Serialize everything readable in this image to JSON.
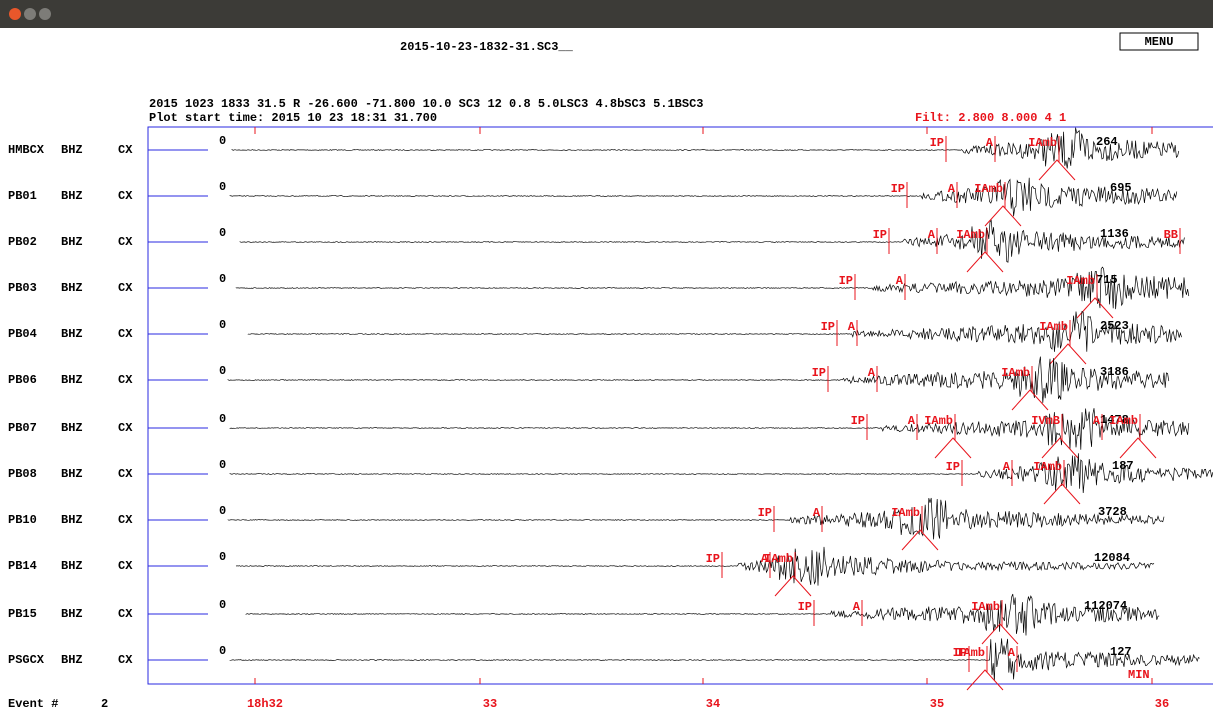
{
  "file_name": "2015-10-23-1832-31.SC3__",
  "menu": "MENU",
  "header_line": "2015 1023 1833 31.5 R -26.600 -71.800 10.0  SC3 12 0.8 5.0LSC3 4.8bSC3 5.1BSC3",
  "plot_start": "Plot start time: 2015  10 23   18:31  31.700",
  "filter": "Filt:  2.800  8.000  4 1",
  "stations": [
    {
      "name": "HMBCX",
      "component": "BHZ",
      "network": "CX",
      "zero_label": "0",
      "amplitude": "264",
      "picks": [
        "IP",
        "A",
        "IAmb"
      ]
    },
    {
      "name": "PB01",
      "component": "BHZ",
      "network": "CX",
      "zero_label": "0",
      "amplitude": "695",
      "picks": [
        "IP",
        "A",
        "IAmb"
      ]
    },
    {
      "name": "PB02",
      "component": "BHZ",
      "network": "CX",
      "zero_label": "0",
      "amplitude": "1136",
      "picks": [
        "IP",
        "A",
        "IAmb",
        "BB"
      ]
    },
    {
      "name": "PB03",
      "component": "BHZ",
      "network": "CX",
      "zero_label": "0",
      "amplitude": "715",
      "picks": [
        "IP",
        "A",
        "IAmb"
      ]
    },
    {
      "name": "PB04",
      "component": "BHZ",
      "network": "CX",
      "zero_label": "0",
      "amplitude": "2523",
      "picks": [
        "IP",
        "A",
        "IAmb"
      ]
    },
    {
      "name": "PB06",
      "component": "BHZ",
      "network": "CX",
      "zero_label": "0",
      "amplitude": "3186",
      "picks": [
        "IP",
        "A",
        "IAmb"
      ]
    },
    {
      "name": "PB07",
      "component": "BHZ",
      "network": "CX",
      "zero_label": "0",
      "amplitude": "1478",
      "picks": [
        "IP",
        "A",
        "IAmb",
        "IVmB",
        "A",
        "IAmb"
      ]
    },
    {
      "name": "PB08",
      "component": "BHZ",
      "network": "CX",
      "zero_label": "0",
      "amplitude": "187",
      "picks": [
        "IP",
        "A",
        "IAmb"
      ]
    },
    {
      "name": "PB10",
      "component": "BHZ",
      "network": "CX",
      "zero_label": "0",
      "amplitude": "3728",
      "picks": [
        "IP",
        "A",
        "IAmb"
      ]
    },
    {
      "name": "PB14",
      "component": "BHZ",
      "network": "CX",
      "zero_label": "0",
      "amplitude": "12084",
      "picks": [
        "IP",
        "A",
        "IAmb"
      ]
    },
    {
      "name": "PB15",
      "component": "BHZ",
      "network": "CX",
      "zero_label": "0",
      "amplitude": "112074",
      "picks": [
        "IP",
        "A",
        "IAmb"
      ]
    },
    {
      "name": "PSGCX",
      "component": "BHZ",
      "network": "CX",
      "zero_label": "0",
      "amplitude": "127",
      "picks": [
        "IP",
        "IAmb",
        "A"
      ]
    }
  ],
  "time_axis": [
    "18h32",
    "33",
    "34",
    "35",
    "36"
  ],
  "event_label": "Event #",
  "event_number": "2",
  "min_label": "MIN"
}
